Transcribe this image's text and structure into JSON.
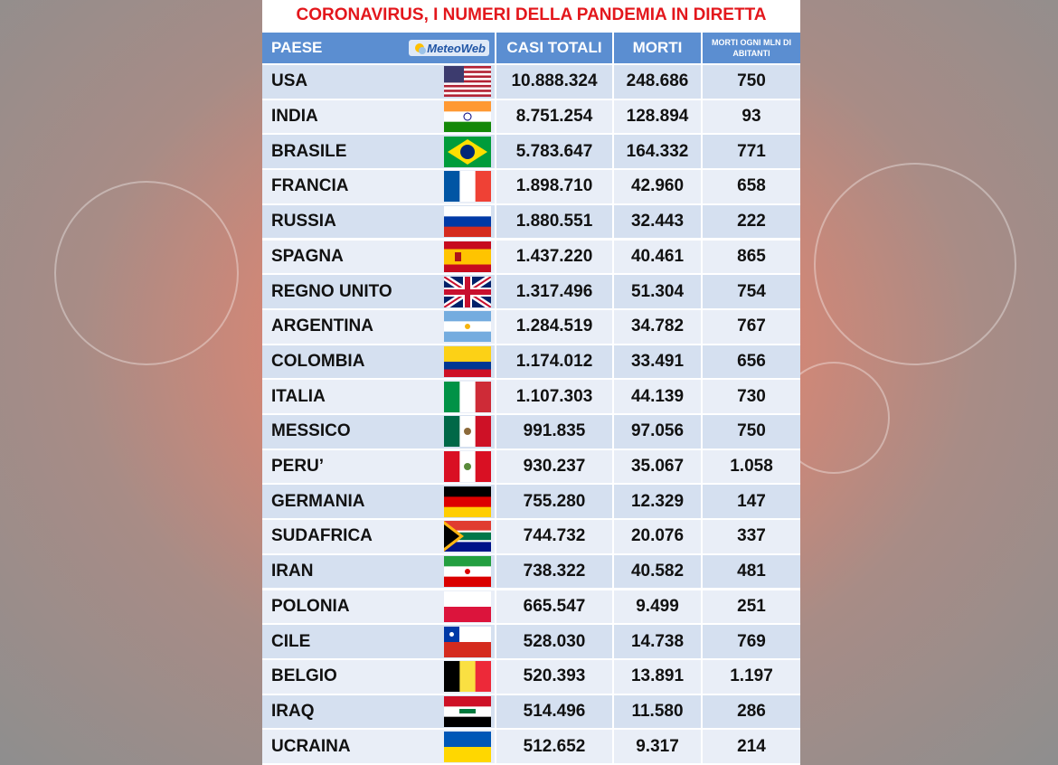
{
  "title": "CORONAVIRUS, I NUMERI DELLA PANDEMIA IN DIRETTA",
  "logo": "MeteoWeb",
  "table": {
    "header": [
      "PAESE",
      "CASI TOTALI",
      "MORTI",
      "MORTI OGNI MLN DI ABITANTI"
    ],
    "rows": [
      [
        "USA",
        "10.888.324",
        "248.686",
        "750"
      ],
      [
        "INDIA",
        "8.751.254",
        "128.894",
        "93"
      ],
      [
        "BRASILE",
        "5.783.647",
        "164.332",
        "771"
      ],
      [
        "FRANCIA",
        "1.898.710",
        "42.960",
        "658"
      ],
      [
        "RUSSIA",
        "1.880.551",
        "32.443",
        "222"
      ],
      [
        "SPAGNA",
        "1.437.220",
        "40.461",
        "865"
      ],
      [
        "REGNO UNITO",
        "1.317.496",
        "51.304",
        "754"
      ],
      [
        "ARGENTINA",
        "1.284.519",
        "34.782",
        "767"
      ],
      [
        "COLOMBIA",
        "1.174.012",
        "33.491",
        "656"
      ],
      [
        "ITALIA",
        "1.107.303",
        "44.139",
        "730"
      ],
      [
        "MESSICO",
        "991.835",
        "97.056",
        "750"
      ],
      [
        "PERU’",
        "930.237",
        "35.067",
        "1.058"
      ],
      [
        "GERMANIA",
        "755.280",
        "12.329",
        "147"
      ],
      [
        "SUDAFRICA",
        "744.732",
        "20.076",
        "337"
      ],
      [
        "IRAN",
        "738.322",
        "40.582",
        "481"
      ],
      [
        "POLONIA",
        "665.547",
        "9.499",
        "251"
      ],
      [
        "CILE",
        "528.030",
        "14.738",
        "769"
      ],
      [
        "BELGIO",
        "520.393",
        "13.891",
        "1.197"
      ],
      [
        "IRAQ",
        "514.496",
        "11.580",
        "286"
      ],
      [
        "UCRAINA",
        "512.652",
        "9.317",
        "214"
      ]
    ]
  }
}
